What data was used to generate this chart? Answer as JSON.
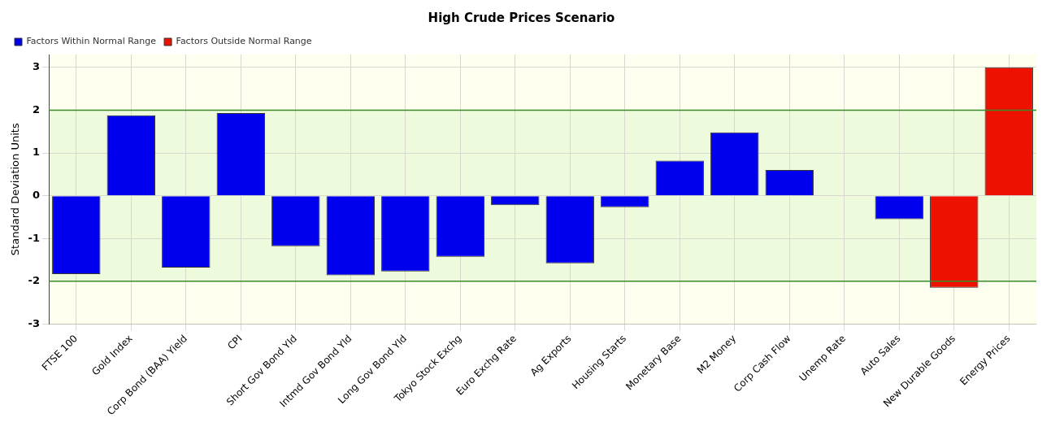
{
  "chart_data": {
    "type": "bar",
    "title": "High Crude Prices Scenario",
    "ylabel": "Standard Deviation Units",
    "categories": [
      "FTSE 100",
      "Gold Index",
      "Corp Bond (BAA) Yield",
      "CPI",
      "Short Gov Bond Yld",
      "Intmd Gov Bond Yld",
      "Long Gov Bond Yld",
      "Tokyo Stock Exchg",
      "Euro Exchg Rate",
      "Ag Exports",
      "Housing Starts",
      "Monetary Base",
      "M2 Money",
      "Corp Cash Flow",
      "Unemp Rate",
      "Auto Sales",
      "New Durable Goods",
      "Energy Prices"
    ],
    "series": [
      {
        "name": "Factors Within Normal Range",
        "color": "#0000ee",
        "values": [
          -1.83,
          1.88,
          -1.68,
          1.93,
          -1.18,
          -1.86,
          -1.77,
          -1.43,
          -0.22,
          -1.58,
          -0.27,
          0.82,
          1.48,
          0.6,
          0,
          -0.55,
          null,
          null
        ]
      },
      {
        "name": "Factors Outside Normal Range",
        "color": "#ee1100",
        "values": [
          null,
          null,
          null,
          null,
          null,
          null,
          null,
          null,
          null,
          null,
          null,
          null,
          null,
          null,
          null,
          null,
          -2.15,
          3.0
        ]
      }
    ],
    "stacked": true,
    "ylim": [
      -3,
      3.3
    ],
    "yticks": [
      -3,
      -2,
      -1,
      0,
      1,
      2,
      3
    ],
    "grid": true,
    "legend": "top left",
    "bands": [
      {
        "axis": "y",
        "from": -2,
        "to": 2,
        "color": "#eefadc"
      }
    ]
  }
}
